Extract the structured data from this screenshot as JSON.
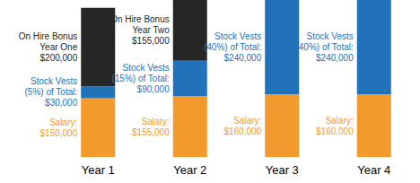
{
  "chart_data": {
    "type": "bar",
    "stacked": true,
    "data_labels": true,
    "tick_labels": "x",
    "categories": [
      "Year 1",
      "Year 2",
      "Year 3",
      "Year 4"
    ],
    "ylim": [
      0,
      400000
    ],
    "series": [
      {
        "name": "Salary",
        "color": "#f39a2e",
        "values": [
          150000,
          155000,
          160000,
          160000
        ],
        "value_labels": [
          "Salary:\n$150,000",
          "Salary:\n$155,000",
          "Salary:\n$160,000",
          "Salary:\n$160,000"
        ]
      },
      {
        "name": "Stock Vests",
        "color": "#2272b9",
        "values": [
          30000,
          90000,
          240000,
          240000
        ],
        "value_labels": [
          "Stock Vests\n(5%) of Total:\n$30,000",
          "Stock Vests\n(15%) of Total:\n$90,000",
          "Stock Vests\n(40%) of Total:\n$240,000",
          "Stock Vests\n(40%) of Total:\n$240,000"
        ]
      },
      {
        "name": "On Hire Bonus",
        "color": "#262626",
        "values": [
          200000,
          155000,
          null,
          null
        ],
        "value_labels": [
          "On Hire Bonus\nYear One\n$200,000",
          "On Hire Bonus\nYear Two\n$155,000",
          null,
          null
        ]
      }
    ]
  }
}
